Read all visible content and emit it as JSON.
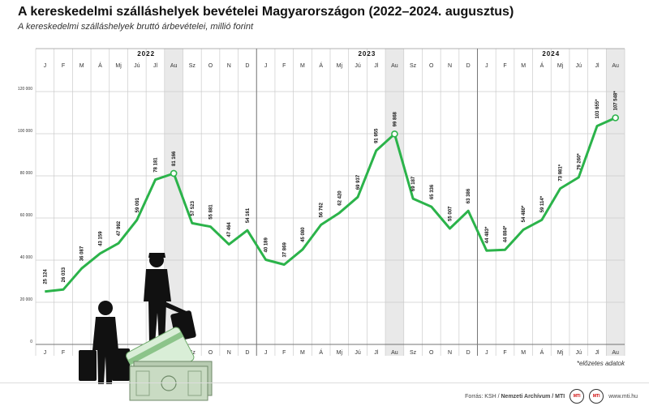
{
  "title": "A kereskedelmi szálláshelyek bevételei Magyarországon (2022–2024. augusztus)",
  "subtitle": "A kereskedelmi szálláshelyek bruttó árbevételei, millió forint",
  "footnote": "*előzetes adatok",
  "footer": {
    "source_prefix": "Forrás: KSH / ",
    "source_bold": "Nemzeti Archívum / MTI",
    "website": "www.mti.hu",
    "logo_left": "MTI",
    "logo_right": "MTI"
  },
  "colors": {
    "line": "#2bb34a",
    "grid": "#cccccc",
    "august_band": "#e9e9e9",
    "text": "#111111"
  },
  "icons": [
    "traveler-with-suitcase-silhouette",
    "bank-card-icon",
    "banknotes-icon"
  ],
  "chart_data": {
    "type": "line",
    "title": "A kereskedelmi szálláshelyek bevételei Magyarországon (2022–2024. augusztus)",
    "ylabel": "",
    "xlabel": "",
    "ylim": [
      0,
      120000
    ],
    "y_ticks": [
      0,
      20000,
      40000,
      60000,
      80000,
      100000,
      120000
    ],
    "y_tick_labels": [
      "0",
      "20 000",
      "40 000",
      "60 000",
      "80 000",
      "100 000",
      "120 000"
    ],
    "grid": true,
    "years": [
      {
        "label": "2022",
        "start": 0,
        "count": 12
      },
      {
        "label": "2023",
        "start": 12,
        "count": 12
      },
      {
        "label": "2024",
        "start": 24,
        "count": 8
      }
    ],
    "highlighted_points": [
      7,
      19,
      31
    ],
    "categories": [
      "J",
      "F",
      "M",
      "Á",
      "Mj",
      "Jú",
      "Jl",
      "Au",
      "Sz",
      "O",
      "N",
      "D",
      "J",
      "F",
      "M",
      "Á",
      "Mj",
      "Jú",
      "Jl",
      "Au",
      "Sz",
      "O",
      "N",
      "D",
      "J",
      "F",
      "M",
      "Á",
      "Mj",
      "Jú",
      "Jl",
      "Au"
    ],
    "values": [
      25124,
      26033,
      36087,
      43159,
      47992,
      59091,
      78181,
      81166,
      57523,
      55881,
      47464,
      54161,
      40189,
      37869,
      45080,
      56762,
      62420,
      69937,
      91955,
      99868,
      69187,
      65336,
      55007,
      63386,
      44483,
      44884,
      54480,
      59114,
      73981,
      79260,
      103655,
      107548
    ],
    "value_labels": [
      "25 124",
      "26 033",
      "36 087",
      "43 159",
      "47 992",
      "59 091",
      "78 181",
      "81 166",
      "57 523",
      "55 881",
      "47 464",
      "54 161",
      "40 189",
      "37 869",
      "45 080",
      "56 762",
      "62 420",
      "69 937",
      "91 955",
      "99 868",
      "69 187",
      "65 336",
      "55 007",
      "63 386",
      "44 483*",
      "44 884*",
      "54 480*",
      "59 114*",
      "73 981*",
      "79 260*",
      "103 655*",
      "107 548*"
    ]
  }
}
